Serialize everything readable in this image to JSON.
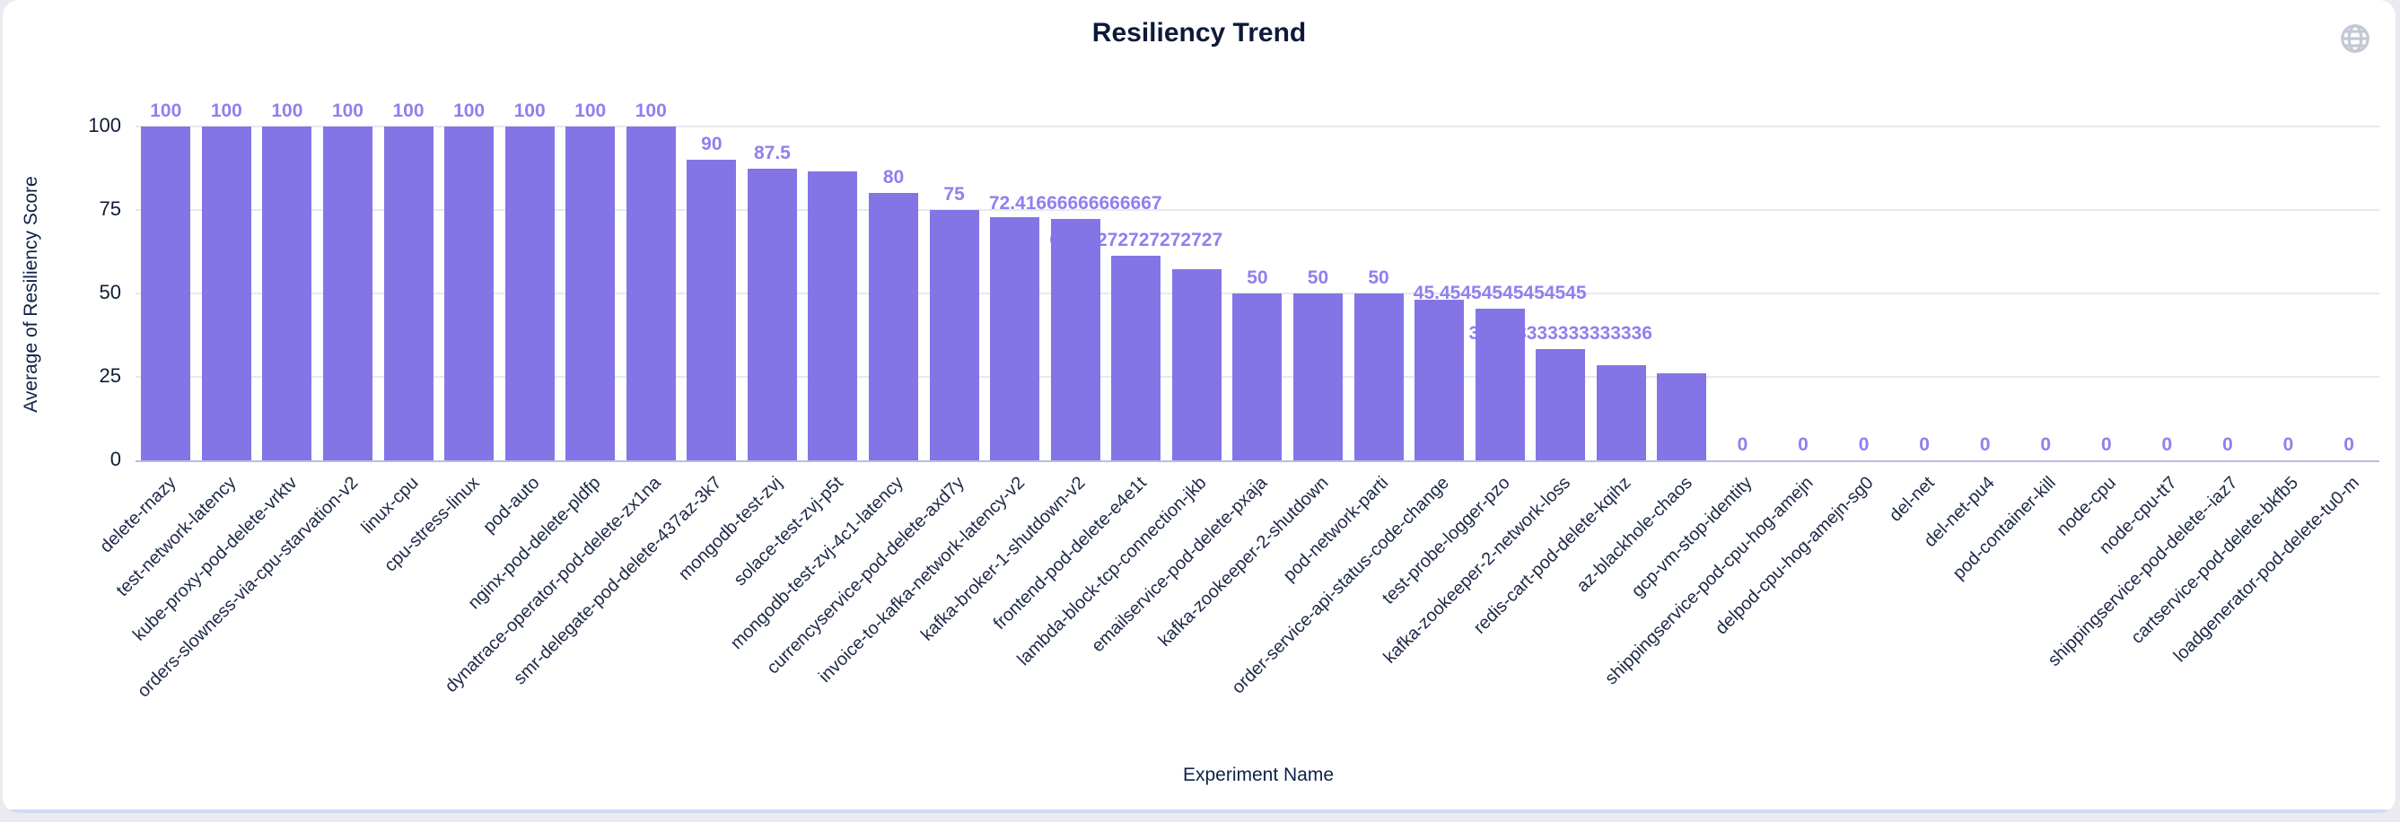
{
  "window": {
    "title": "Resiliency Trend",
    "icons": {
      "globe": "globe-icon"
    }
  },
  "chart_data": {
    "type": "bar",
    "title": "Resiliency Trend",
    "xlabel": "Experiment Name",
    "ylabel": "Average of Resiliency Score",
    "ylim": [
      0,
      100
    ],
    "yticks": [
      "0",
      "25",
      "50",
      "75",
      "100"
    ],
    "grid": true,
    "legend": false,
    "bar_color": "#8475e6",
    "value_label_color": "#8f80ee",
    "axis_line_color": "#b6bfe8",
    "categories": [
      "delete-rnazy",
      "test-network-latency",
      "kube-proxy-pod-delete-vrktv",
      "orders-slowness-via-cpu-starvation-v2",
      "linux-cpu",
      "cpu-stress-linux",
      "pod-auto",
      "nginx-pod-delete-pldfp",
      "dynatrace-operator-pod-delete-zx1na",
      "smr-delegate-pod-delete-437az-3k7",
      "mongodb-test-zvj",
      "solace-test-zvj-p5t",
      "mongodb-test-zvj-4c1-latency",
      "currencyservice-pod-delete-axd7y",
      "invoice-to-kafka-network-latency-v2",
      "kafka-broker-1-shutdown-v2",
      "frontend-pod-delete-e4e1t",
      "lambda-block-tcp-connection-jkb",
      "emailservice-pod-delete-pxaja",
      "kafka-zookeeper-2-shutdown",
      "pod-network-parti",
      "order-service-api-status-code-change",
      "test-probe-logger-pzo",
      "kafka-zookeeper-2-network-loss",
      "redis-cart-pod-delete-kqihz",
      "az-blackhole-chaos",
      "gcp-vm-stop-identity",
      "shippingservice-pod-cpu-hog-amejn",
      "delpod-cpu-hog-amejn-sg0",
      "del-net",
      "del-net-pu4",
      "pod-container-kill",
      "node-cpu",
      "node-cpu-tt7",
      "shippingservice-pod-delete--iaz7",
      "cartservice-pod-delete-bkfb5",
      "loadgenerator-pod-delete-tu0-m"
    ],
    "values": [
      100,
      100,
      100,
      100,
      100,
      100,
      100,
      100,
      100,
      90,
      87.5,
      86.5,
      80,
      75,
      72.9,
      72.41666666666667,
      61.27272727272727,
      57.3,
      50,
      50,
      50,
      48,
      45.45454545454545,
      33.333333333333336,
      28.5,
      26,
      0,
      0,
      0,
      0,
      0,
      0,
      0,
      0,
      0,
      0,
      0
    ],
    "value_labels": [
      "100",
      "100",
      "100",
      "100",
      "100",
      "100",
      "100",
      "100",
      "100",
      "90",
      "87.5",
      "",
      "80",
      "75",
      "",
      "72.41666666666667",
      "61.27272727272727",
      "",
      "50",
      "50",
      "50",
      "",
      "45.45454545454545",
      "33.333333333333336",
      "",
      "",
      "0",
      "0",
      "0",
      "0",
      "0",
      "0",
      "0",
      "0",
      "0",
      "0",
      "0"
    ],
    "partially_hidden_label_indexes": [
      16,
      23
    ]
  }
}
